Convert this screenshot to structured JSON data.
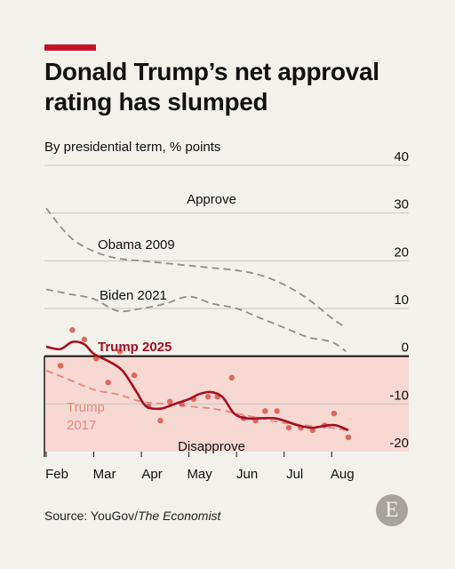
{
  "header": {
    "title": "Donald Trump’s net approval rating has slumped",
    "subtitle": "By presidential term, % points"
  },
  "footer": {
    "source_prefix": "Source: YouGov/",
    "source_italic": "The Economist",
    "logo_letter": "E"
  },
  "colors": {
    "accent": "#c8102e",
    "trump2025": "#a50f1f",
    "trump2017": "#e58a7e",
    "dots": "#dd5247",
    "comparison": "#8e8e8e",
    "disapprove_band": "#f7d8d3"
  },
  "chart_data": {
    "type": "line",
    "ylim": [
      -20,
      40
    ],
    "xlim": [
      0,
      6.5
    ],
    "yticks": [
      40,
      30,
      20,
      10,
      0,
      -10,
      -20
    ],
    "ytick_labels": [
      "40",
      "30",
      "20",
      "10",
      "0",
      "-10",
      "-20"
    ],
    "xticks": [
      0,
      1,
      2,
      3,
      4,
      5,
      6
    ],
    "xtick_labels": [
      "Feb",
      "Mar",
      "Apr",
      "May",
      "Jun",
      "Jul",
      "Aug"
    ],
    "grid": true,
    "annotations": {
      "approve": "Approve",
      "disapprove": "Disapprove"
    },
    "series": [
      {
        "name": "Obama 2009",
        "style": "dashed",
        "x": [
          0,
          0.5,
          1,
          1.5,
          2,
          2.5,
          3,
          3.5,
          4,
          4.5,
          5,
          5.5,
          6,
          6.3
        ],
        "y": [
          31,
          25,
          22,
          20.5,
          20,
          19.5,
          19,
          18.5,
          18,
          17,
          15,
          12,
          8,
          6
        ]
      },
      {
        "name": "Biden 2021",
        "style": "dashed",
        "x": [
          0,
          0.5,
          1,
          1.5,
          2,
          2.5,
          3,
          3.5,
          4,
          4.5,
          5,
          5.5,
          6,
          6.3
        ],
        "y": [
          14,
          13,
          12,
          9.5,
          10,
          11,
          12.5,
          11,
          10,
          8,
          6,
          4,
          3,
          1
        ]
      },
      {
        "name": "Trump 2017",
        "style": "dashed",
        "x": [
          0,
          0.5,
          1,
          1.5,
          2,
          2.5,
          3,
          3.5,
          4,
          4.5,
          5,
          5.5,
          6,
          6.3
        ],
        "y": [
          -3,
          -5,
          -7,
          -8,
          -9.5,
          -10,
          -10.5,
          -11,
          -12,
          -13,
          -14,
          -14.5,
          -15,
          -15.5
        ]
      },
      {
        "name": "Trump 2025",
        "style": "solid",
        "x": [
          0,
          0.3,
          0.55,
          0.8,
          1,
          1.3,
          1.6,
          1.9,
          2.1,
          2.4,
          2.7,
          3,
          3.2,
          3.45,
          3.7,
          3.95,
          4.2,
          4.5,
          4.8,
          5,
          5.3,
          5.6,
          5.9,
          6.1,
          6.35
        ],
        "y": [
          2,
          1.5,
          3,
          2.5,
          0.5,
          -1,
          -3,
          -7.5,
          -10.5,
          -11,
          -10,
          -9,
          -8,
          -7.5,
          -8.5,
          -12,
          -13,
          -13,
          -13,
          -13.5,
          -14.5,
          -15,
          -14.5,
          -14.5,
          -15.5
        ]
      }
    ],
    "points_2025": {
      "x": [
        0.3,
        0.55,
        0.8,
        1.05,
        1.3,
        1.55,
        1.85,
        2.15,
        2.4,
        2.6,
        2.85,
        3.1,
        3.4,
        3.6,
        3.9,
        4.15,
        4.4,
        4.6,
        4.85,
        5.1,
        5.35,
        5.6,
        5.85,
        6.05,
        6.35
      ],
      "y": [
        -2,
        5.5,
        3.5,
        -0.5,
        -5.5,
        1,
        -4,
        -10.5,
        -13.5,
        -9.5,
        -10,
        -9,
        -8.5,
        -8.5,
        -4.5,
        -13,
        -13.5,
        -11.5,
        -11.5,
        -15,
        -15,
        -15.5,
        -14.5,
        -12,
        -17
      ]
    }
  }
}
